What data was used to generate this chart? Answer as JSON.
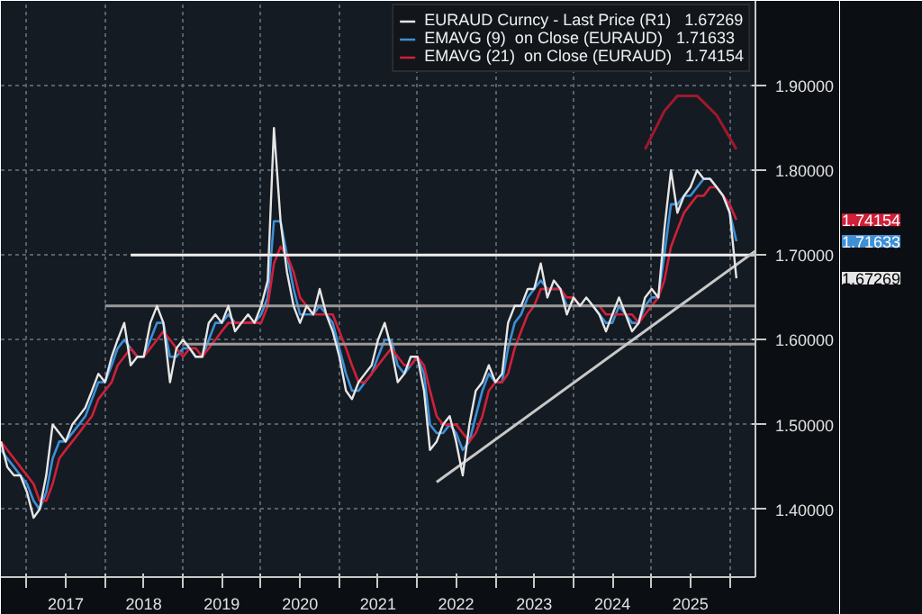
{
  "chart_data": {
    "type": "line",
    "x": [
      "2016-09",
      "2016-10",
      "2016-11",
      "2016-12",
      "2017-01",
      "2017-02",
      "2017-03",
      "2017-04",
      "2017-05",
      "2017-06",
      "2017-07",
      "2017-08",
      "2017-09",
      "2017-10",
      "2017-11",
      "2017-12",
      "2018-01",
      "2018-02",
      "2018-03",
      "2018-04",
      "2018-05",
      "2018-06",
      "2018-07",
      "2018-08",
      "2018-09",
      "2018-10",
      "2018-11",
      "2018-12",
      "2019-01",
      "2019-02",
      "2019-03",
      "2019-04",
      "2019-05",
      "2019-06",
      "2019-07",
      "2019-08",
      "2019-09",
      "2019-10",
      "2019-11",
      "2019-12",
      "2020-01",
      "2020-02",
      "2020-03",
      "2020-04",
      "2020-05",
      "2020-06",
      "2020-07",
      "2020-08",
      "2020-09",
      "2020-10",
      "2020-11",
      "2020-12",
      "2021-01",
      "2021-02",
      "2021-03",
      "2021-04",
      "2021-05",
      "2021-06",
      "2021-07",
      "2021-08",
      "2021-09",
      "2021-10",
      "2021-11",
      "2021-12",
      "2022-01",
      "2022-02",
      "2022-03",
      "2022-04",
      "2022-05",
      "2022-06",
      "2022-07",
      "2022-08",
      "2022-09",
      "2022-10",
      "2022-11",
      "2022-12",
      "2023-01",
      "2023-02",
      "2023-03",
      "2023-04",
      "2023-05",
      "2023-06",
      "2023-07",
      "2023-08",
      "2023-09",
      "2023-10",
      "2023-11",
      "2023-12",
      "2024-01",
      "2024-02",
      "2024-03",
      "2024-04",
      "2024-05",
      "2024-06",
      "2024-07",
      "2024-08",
      "2024-09",
      "2024-10",
      "2024-11",
      "2024-12",
      "2025-01",
      "2025-02",
      "2025-03",
      "2025-04",
      "2025-05",
      "2025-06",
      "2025-07",
      "2025-08",
      "2025-09",
      "2025-10",
      "2025-11",
      "2025-12",
      "2026-01",
      "2026-02"
    ],
    "series": [
      {
        "name": "EURAUD Curncy - Last Price (R1)   1.67269",
        "color": "#e6e6e6",
        "values": [
          1.48,
          1.45,
          1.44,
          1.44,
          1.42,
          1.39,
          1.4,
          1.44,
          1.5,
          1.49,
          1.48,
          1.5,
          1.51,
          1.52,
          1.54,
          1.56,
          1.55,
          1.58,
          1.6,
          1.62,
          1.57,
          1.58,
          1.58,
          1.62,
          1.64,
          1.62,
          1.55,
          1.59,
          1.6,
          1.59,
          1.58,
          1.58,
          1.62,
          1.63,
          1.62,
          1.64,
          1.61,
          1.62,
          1.63,
          1.62,
          1.64,
          1.67,
          1.85,
          1.74,
          1.68,
          1.64,
          1.62,
          1.64,
          1.63,
          1.66,
          1.63,
          1.61,
          1.58,
          1.54,
          1.53,
          1.55,
          1.56,
          1.57,
          1.6,
          1.62,
          1.59,
          1.55,
          1.56,
          1.58,
          1.58,
          1.54,
          1.47,
          1.48,
          1.5,
          1.51,
          1.48,
          1.44,
          1.5,
          1.54,
          1.55,
          1.57,
          1.55,
          1.56,
          1.62,
          1.64,
          1.64,
          1.66,
          1.66,
          1.69,
          1.65,
          1.67,
          1.66,
          1.63,
          1.65,
          1.64,
          1.65,
          1.64,
          1.63,
          1.61,
          1.63,
          1.65,
          1.63,
          1.61,
          1.62,
          1.65,
          1.66,
          1.65,
          1.73,
          1.8,
          1.75,
          1.77,
          1.78,
          1.8,
          1.79,
          1.79,
          1.78,
          1.77,
          1.75,
          1.67269
        ]
      },
      {
        "name": "EMAVG (9)  on Close (EURAUD)   1.71633",
        "color": "#3d8fd6",
        "values": [
          1.47,
          1.46,
          1.45,
          1.44,
          1.43,
          1.41,
          1.4,
          1.42,
          1.46,
          1.48,
          1.48,
          1.49,
          1.5,
          1.51,
          1.53,
          1.55,
          1.55,
          1.57,
          1.59,
          1.6,
          1.59,
          1.58,
          1.58,
          1.6,
          1.62,
          1.62,
          1.58,
          1.58,
          1.59,
          1.59,
          1.58,
          1.58,
          1.6,
          1.62,
          1.62,
          1.63,
          1.62,
          1.62,
          1.62,
          1.62,
          1.63,
          1.65,
          1.74,
          1.74,
          1.7,
          1.66,
          1.63,
          1.63,
          1.63,
          1.64,
          1.63,
          1.62,
          1.59,
          1.56,
          1.54,
          1.54,
          1.55,
          1.56,
          1.58,
          1.6,
          1.6,
          1.57,
          1.56,
          1.57,
          1.58,
          1.56,
          1.5,
          1.49,
          1.49,
          1.5,
          1.49,
          1.47,
          1.48,
          1.51,
          1.54,
          1.56,
          1.55,
          1.55,
          1.59,
          1.62,
          1.63,
          1.65,
          1.66,
          1.67,
          1.66,
          1.66,
          1.66,
          1.64,
          1.64,
          1.64,
          1.64,
          1.64,
          1.63,
          1.62,
          1.62,
          1.64,
          1.63,
          1.62,
          1.62,
          1.64,
          1.65,
          1.65,
          1.7,
          1.76,
          1.76,
          1.77,
          1.77,
          1.78,
          1.79,
          1.79,
          1.78,
          1.77,
          1.75,
          1.71633
        ]
      },
      {
        "name": "EMAVG (21)  on Close (EURAUD)   1.74154",
        "color": "#d0203a",
        "values": [
          1.48,
          1.47,
          1.46,
          1.45,
          1.44,
          1.43,
          1.41,
          1.41,
          1.43,
          1.46,
          1.47,
          1.48,
          1.49,
          1.5,
          1.51,
          1.53,
          1.54,
          1.55,
          1.57,
          1.58,
          1.59,
          1.58,
          1.58,
          1.59,
          1.6,
          1.61,
          1.6,
          1.59,
          1.58,
          1.59,
          1.59,
          1.58,
          1.59,
          1.6,
          1.61,
          1.62,
          1.62,
          1.62,
          1.62,
          1.62,
          1.62,
          1.64,
          1.69,
          1.71,
          1.7,
          1.68,
          1.65,
          1.64,
          1.63,
          1.63,
          1.63,
          1.63,
          1.61,
          1.59,
          1.57,
          1.55,
          1.55,
          1.56,
          1.57,
          1.58,
          1.59,
          1.58,
          1.57,
          1.57,
          1.58,
          1.57,
          1.54,
          1.51,
          1.5,
          1.5,
          1.5,
          1.49,
          1.48,
          1.49,
          1.51,
          1.54,
          1.55,
          1.55,
          1.56,
          1.59,
          1.61,
          1.63,
          1.64,
          1.66,
          1.66,
          1.66,
          1.66,
          1.65,
          1.65,
          1.64,
          1.64,
          1.64,
          1.64,
          1.63,
          1.63,
          1.63,
          1.63,
          1.63,
          1.62,
          1.63,
          1.64,
          1.65,
          1.67,
          1.71,
          1.73,
          1.75,
          1.76,
          1.77,
          1.77,
          1.78,
          1.78,
          1.77,
          1.76,
          1.74154
        ]
      },
      {
        "color": "#f0f0f0",
        "x": [
          "2018-05",
          "2026-05"
        ],
        "values": [
          1.7,
          1.7
        ]
      },
      {
        "color": "#9a9a9a",
        "x": [
          "2018-01",
          "2026-05"
        ],
        "values": [
          1.64,
          1.64
        ]
      },
      {
        "color": "#9a9a9a",
        "x": [
          "2019-01",
          "2026-05"
        ],
        "values": [
          1.595,
          1.595
        ]
      },
      {
        "color": "#c8c8c8",
        "x": [
          "2022-04",
          "2026-05"
        ],
        "values": [
          1.432,
          1.705
        ]
      },
      {
        "color": "#a0182c",
        "x": [
          "2024-12",
          "2025-03",
          "2025-05",
          "2025-08",
          "2025-11",
          "2026-02"
        ],
        "values": [
          1.825,
          1.87,
          1.888,
          1.888,
          1.865,
          1.825
        ]
      }
    ],
    "annotations": [
      "1.67269",
      "1.71633",
      "1.74154"
    ],
    "xlim": [
      "2016-09",
      "2026-05"
    ],
    "xticks": [
      {
        "value": "2017-01",
        "label": null
      },
      {
        "value": "2017-07",
        "label": "2017"
      },
      {
        "value": "2018-01",
        "label": null
      },
      {
        "value": "2018-07",
        "label": "2018"
      },
      {
        "value": "2019-01",
        "label": null
      },
      {
        "value": "2019-07",
        "label": "2019"
      },
      {
        "value": "2020-01",
        "label": null
      },
      {
        "value": "2020-07",
        "label": "2020"
      },
      {
        "value": "2021-01",
        "label": null
      },
      {
        "value": "2021-07",
        "label": "2021"
      },
      {
        "value": "2022-01",
        "label": null
      },
      {
        "value": "2022-07",
        "label": "2022"
      },
      {
        "value": "2023-01",
        "label": null
      },
      {
        "value": "2023-07",
        "label": "2023"
      },
      {
        "value": "2024-01",
        "label": null
      },
      {
        "value": "2024-07",
        "label": "2024"
      },
      {
        "value": "2025-01",
        "label": null
      },
      {
        "value": "2025-07",
        "label": "2025"
      },
      {
        "value": "2026-01",
        "label": null
      }
    ],
    "ylim": [
      1.32,
      2.0
    ],
    "yticks": [
      {
        "value": 1.4,
        "label": "1.40000"
      },
      {
        "value": 1.5,
        "label": "1.50000"
      },
      {
        "value": 1.6,
        "label": "1.60000"
      },
      {
        "value": 1.7,
        "label": "1.70000"
      },
      {
        "value": 1.8,
        "label": "1.80000"
      },
      {
        "value": 1.9,
        "label": "1.90000"
      }
    ],
    "grid": true,
    "legend": "top right"
  }
}
